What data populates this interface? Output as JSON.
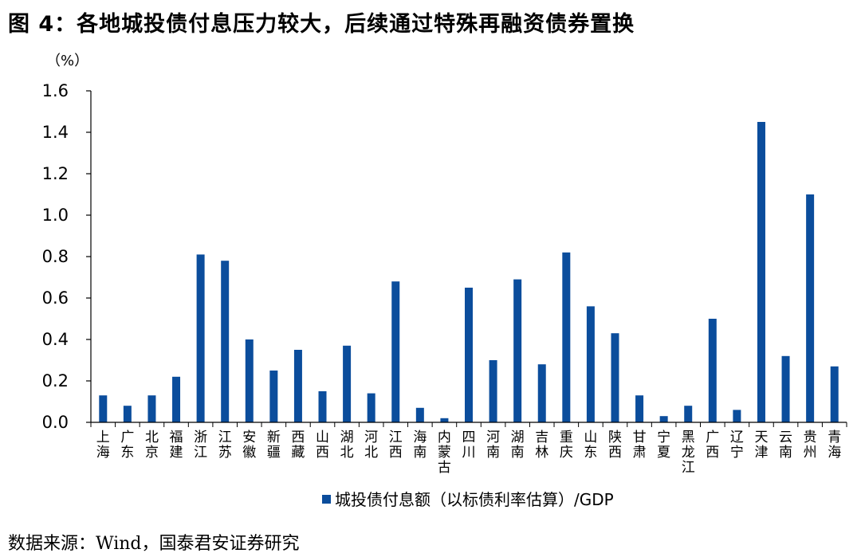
{
  "title": "图 4：各地城投债付息压力较大，后续通过特殊再融资债券置换",
  "source": "数据来源：Wind，国泰君安证券研究",
  "colors": {
    "bar": "#0b4d9c",
    "axis": "#000000"
  },
  "chart_data": {
    "type": "bar",
    "unit": "（%）",
    "ylim": [
      0,
      1.6
    ],
    "yticks": [
      "0.0",
      "0.2",
      "0.4",
      "0.6",
      "0.8",
      "1.0",
      "1.2",
      "1.4",
      "1.6"
    ],
    "grid": false,
    "legend_position": "bottom",
    "categories": [
      "上海",
      "广东",
      "北京",
      "福建",
      "浙江",
      "江苏",
      "安徽",
      "新疆",
      "西藏",
      "山西",
      "湖北",
      "河北",
      "江西",
      "海南",
      "内蒙古",
      "四川",
      "河南",
      "湖南",
      "吉林",
      "重庆",
      "山东",
      "陕西",
      "甘肃",
      "宁夏",
      "黑龙江",
      "广西",
      "辽宁",
      "天津",
      "云南",
      "贵州",
      "青海"
    ],
    "series": [
      {
        "name": "城投债付息额（以标债利率估算）/GDP",
        "values": [
          0.13,
          0.08,
          0.13,
          0.22,
          0.81,
          0.78,
          0.4,
          0.25,
          0.35,
          0.15,
          0.37,
          0.14,
          0.68,
          0.07,
          0.02,
          0.65,
          0.3,
          0.69,
          0.28,
          0.82,
          0.56,
          0.43,
          0.13,
          0.03,
          0.08,
          0.5,
          0.06,
          1.45,
          0.32,
          1.1,
          0.27
        ]
      }
    ]
  }
}
